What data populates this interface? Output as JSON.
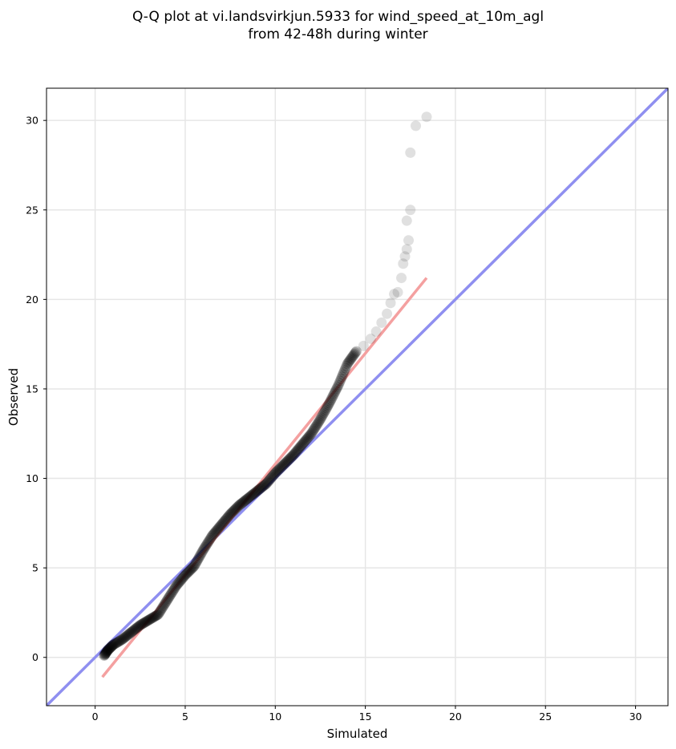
{
  "chart_data": {
    "type": "scatter",
    "title_line1": "Q-Q plot at vi.landsvirkjun.5933 for wind_speed_at_10m_agl",
    "title_line2": "from 42-48h during winter",
    "xlabel": "Simulated",
    "ylabel": "Observed",
    "xlim": [
      -2.7,
      31.8
    ],
    "ylim": [
      -2.7,
      31.8
    ],
    "xticks": [
      0,
      5,
      10,
      15,
      20,
      25,
      30
    ],
    "yticks": [
      0,
      5,
      10,
      15,
      20,
      25,
      30
    ],
    "grid": true,
    "identity_line": {
      "color": "#8f8ff0",
      "from": [
        -2.7,
        -2.7
      ],
      "to": [
        31.8,
        31.8
      ]
    },
    "fit_line": {
      "color": "#f4a0a0",
      "from": [
        0.4,
        -1.1
      ],
      "to": [
        18.4,
        21.2
      ]
    },
    "point_color": "#000000",
    "quantiles_dense": [
      [
        0.5,
        0.1
      ],
      [
        0.7,
        0.4
      ],
      [
        1.0,
        0.7
      ],
      [
        1.5,
        1.0
      ],
      [
        2.0,
        1.4
      ],
      [
        2.5,
        1.8
      ],
      [
        3.0,
        2.1
      ],
      [
        3.5,
        2.4
      ],
      [
        4.0,
        3.2
      ],
      [
        4.5,
        4.0
      ],
      [
        5.0,
        4.6
      ],
      [
        5.5,
        5.1
      ],
      [
        6.0,
        6.0
      ],
      [
        6.5,
        6.8
      ],
      [
        7.0,
        7.4
      ],
      [
        7.5,
        8.0
      ],
      [
        8.0,
        8.5
      ],
      [
        8.5,
        8.9
      ],
      [
        9.0,
        9.3
      ],
      [
        9.5,
        9.7
      ],
      [
        10.0,
        10.3
      ],
      [
        10.5,
        10.8
      ],
      [
        11.0,
        11.3
      ],
      [
        11.5,
        11.9
      ],
      [
        12.0,
        12.5
      ],
      [
        12.5,
        13.3
      ],
      [
        13.0,
        14.2
      ],
      [
        13.5,
        15.2
      ],
      [
        14.0,
        16.4
      ],
      [
        14.5,
        17.1
      ]
    ],
    "quantiles_tail": [
      [
        14.9,
        17.4
      ],
      [
        15.3,
        17.8
      ],
      [
        15.6,
        18.2
      ],
      [
        15.9,
        18.7
      ],
      [
        16.2,
        19.2
      ],
      [
        16.4,
        19.8
      ],
      [
        16.6,
        20.3
      ],
      [
        16.8,
        20.4
      ],
      [
        17.0,
        21.2
      ],
      [
        17.1,
        22.0
      ],
      [
        17.2,
        22.4
      ],
      [
        17.3,
        22.8
      ],
      [
        17.4,
        23.3
      ],
      [
        17.3,
        24.4
      ],
      [
        17.5,
        25.0
      ],
      [
        17.5,
        28.2
      ],
      [
        17.8,
        29.7
      ],
      [
        18.4,
        30.2
      ]
    ]
  }
}
